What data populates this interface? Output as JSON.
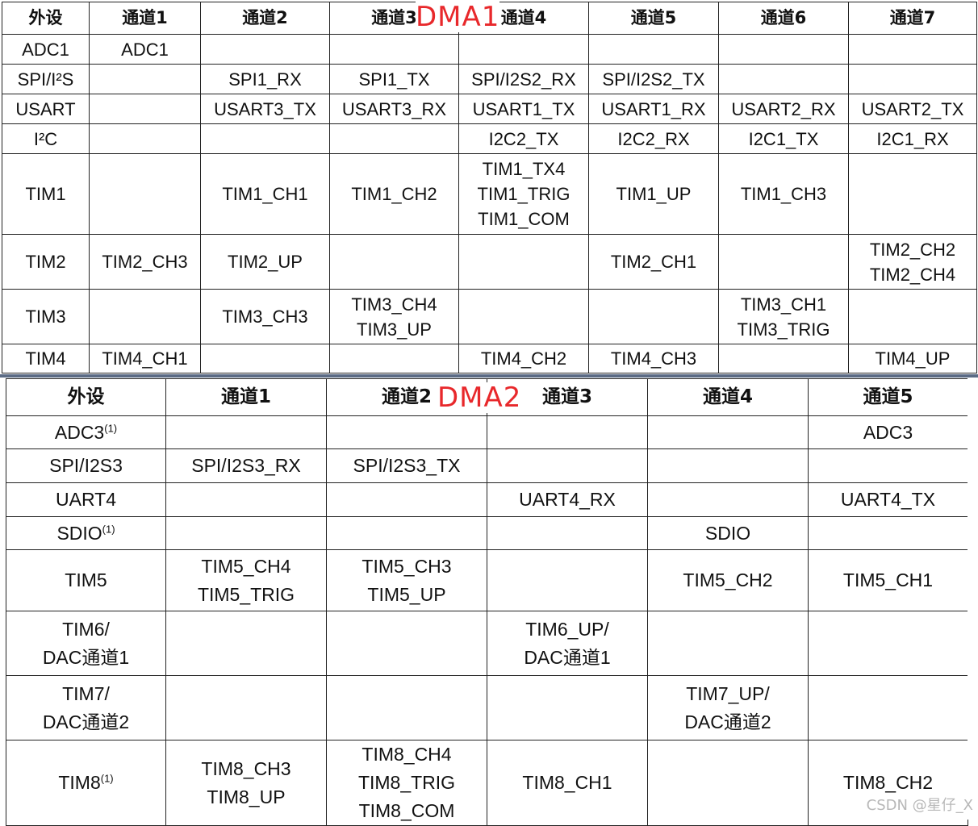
{
  "dma1": {
    "label": "DMA1",
    "header": [
      "外设",
      "通道1",
      "通道2",
      "通道3",
      "通道4",
      "通道5",
      "通道6",
      "通道7"
    ],
    "rows": [
      {
        "peripheral": "ADC1",
        "cells": [
          [
            "ADC1"
          ],
          [],
          [],
          [],
          [],
          [],
          []
        ]
      },
      {
        "peripheral": "SPI/I²S",
        "cells": [
          [],
          [
            "SPI1_RX"
          ],
          [
            "SPI1_TX"
          ],
          [
            "SPI/I2S2_RX"
          ],
          [
            "SPI/I2S2_TX"
          ],
          [],
          []
        ]
      },
      {
        "peripheral": "USART",
        "cells": [
          [],
          [
            "USART3_TX"
          ],
          [
            "USART3_RX"
          ],
          [
            "USART1_TX"
          ],
          [
            "USART1_RX"
          ],
          [
            "USART2_RX"
          ],
          [
            "USART2_TX"
          ]
        ]
      },
      {
        "peripheral": "I²C",
        "cells": [
          [],
          [],
          [],
          [
            "I2C2_TX"
          ],
          [
            "I2C2_RX"
          ],
          [
            "I2C1_TX"
          ],
          [
            "I2C1_RX"
          ]
        ]
      },
      {
        "peripheral": "TIM1",
        "cells": [
          [],
          [
            "TIM1_CH1"
          ],
          [
            "TIM1_CH2"
          ],
          [
            "TIM1_TX4",
            "TIM1_TRIG",
            "TIM1_COM"
          ],
          [
            "TIM1_UP"
          ],
          [
            "TIM1_CH3"
          ],
          []
        ]
      },
      {
        "peripheral": "TIM2",
        "cells": [
          [
            "TIM2_CH3"
          ],
          [
            "TIM2_UP"
          ],
          [],
          [],
          [
            "TIM2_CH1"
          ],
          [],
          [
            "TIM2_CH2",
            "TIM2_CH4"
          ]
        ]
      },
      {
        "peripheral": "TIM3",
        "cells": [
          [],
          [
            "TIM3_CH3"
          ],
          [
            "TIM3_CH4",
            "TIM3_UP"
          ],
          [],
          [],
          [
            "TIM3_CH1",
            "TIM3_TRIG"
          ],
          []
        ]
      },
      {
        "peripheral": "TIM4",
        "cells": [
          [
            "TIM4_CH1"
          ],
          [],
          [],
          [
            "TIM4_CH2"
          ],
          [
            "TIM4_CH3"
          ],
          [],
          [
            "TIM4_UP"
          ]
        ]
      }
    ]
  },
  "dma2": {
    "label": "DMA2",
    "header": [
      "外设",
      "通道1",
      "通道2",
      "通道3",
      "通道4",
      "通道5"
    ],
    "rows": [
      {
        "peripheral": [
          "ADC3",
          "(1)"
        ],
        "cells": [
          [],
          [],
          [],
          [],
          [
            "ADC3"
          ]
        ]
      },
      {
        "peripheral": [
          "SPI/I2S3"
        ],
        "cells": [
          [
            "SPI/I2S3_RX"
          ],
          [
            "SPI/I2S3_TX"
          ],
          [],
          [],
          []
        ]
      },
      {
        "peripheral": [
          "UART4"
        ],
        "cells": [
          [],
          [],
          [
            "UART4_RX"
          ],
          [],
          [
            "UART4_TX"
          ]
        ]
      },
      {
        "peripheral": [
          "SDIO",
          "(1)"
        ],
        "cells": [
          [],
          [],
          [],
          [
            "SDIO"
          ],
          []
        ]
      },
      {
        "peripheral": [
          "TIM5"
        ],
        "cells": [
          [
            "TIM5_CH4",
            "TIM5_TRIG"
          ],
          [
            "TIM5_CH3",
            "TIM5_UP"
          ],
          [],
          [
            "TIM5_CH2"
          ],
          [
            "TIM5_CH1"
          ]
        ]
      },
      {
        "peripheral": [
          "TIM6/",
          "DAC通道1"
        ],
        "cells": [
          [],
          [],
          [
            "TIM6_UP/",
            "DAC通道1"
          ],
          [],
          []
        ]
      },
      {
        "peripheral": [
          "TIM7/",
          "DAC通道2"
        ],
        "cells": [
          [],
          [],
          [],
          [
            "TIM7_UP/",
            "DAC通道2"
          ],
          []
        ]
      },
      {
        "peripheral": [
          "TIM8",
          "(1)"
        ],
        "cells": [
          [
            "TIM8_CH3",
            "TIM8_UP"
          ],
          [
            "TIM8_CH4",
            "TIM8_TRIG",
            "TIM8_COM"
          ],
          [
            "TIM8_CH1"
          ],
          [],
          [
            "TIM8_CH2"
          ]
        ]
      }
    ]
  },
  "watermark": "CSDN @星仔_X"
}
